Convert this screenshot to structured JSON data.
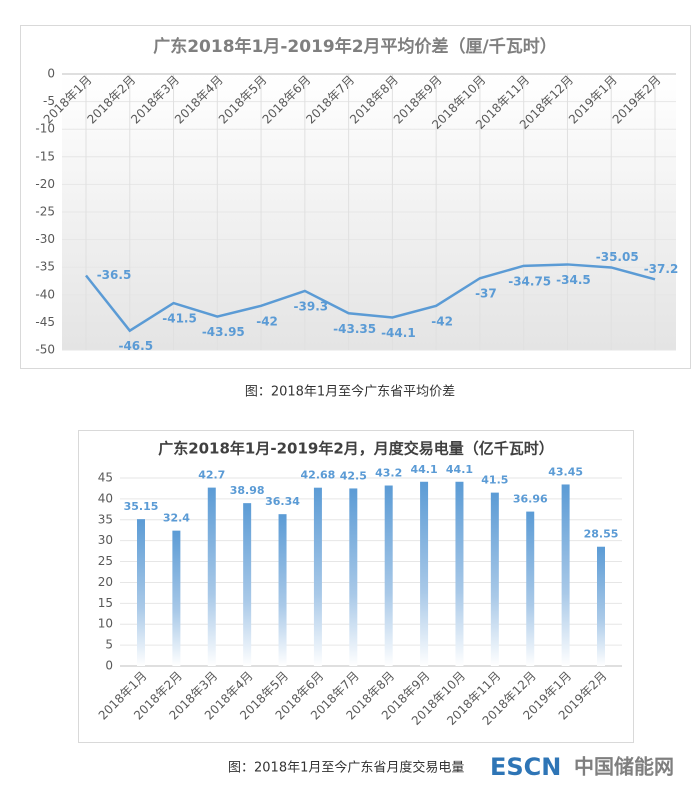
{
  "chart_data": [
    {
      "type": "line",
      "title": "广东2018年1月-2019年2月平均价差（厘/千瓦时）",
      "categories": [
        "2018年1月",
        "2018年2月",
        "2018年3月",
        "2018年4月",
        "2018年5月",
        "2018年6月",
        "2018年7月",
        "2018年8月",
        "2018年9月",
        "2018年10月",
        "2018年11月",
        "2018年12月",
        "2019年1月",
        "2019年2月"
      ],
      "values": [
        -36.5,
        -46.5,
        -41.5,
        -43.95,
        -42,
        -39.3,
        -43.35,
        -44.1,
        -42,
        -37,
        -34.75,
        -34.5,
        -35.05,
        -37.2
      ],
      "color": "#5b9bd5",
      "ylim": [
        -50,
        0
      ],
      "yticks": [
        0,
        -5,
        -10,
        -15,
        -20,
        -25,
        -30,
        -35,
        -40,
        -45,
        -50
      ],
      "grid": true,
      "caption": "图：2018年1月至今广东省平均价差"
    },
    {
      "type": "bar",
      "title": "广东2018年1月-2019年2月，月度交易电量（亿千瓦时）",
      "categories": [
        "2018年1月",
        "2018年2月",
        "2018年3月",
        "2018年4月",
        "2018年5月",
        "2018年6月",
        "2018年7月",
        "2018年8月",
        "2018年9月",
        "2018年10月",
        "2018年11月",
        "2018年12月",
        "2019年1月",
        "2019年2月"
      ],
      "values": [
        35.15,
        32.4,
        42.7,
        38.98,
        36.34,
        42.68,
        42.5,
        43.2,
        44.1,
        44.1,
        41.5,
        36.96,
        43.45,
        28.55
      ],
      "color": "#5b9bd5",
      "ylim": [
        0,
        45
      ],
      "yticks": [
        0,
        5,
        10,
        15,
        20,
        25,
        30,
        35,
        40,
        45
      ],
      "grid": true,
      "caption": "图：2018年1月至今广东省月度交易电量"
    }
  ],
  "watermark": {
    "brand": "ESCN",
    "name": "中国储能网"
  }
}
